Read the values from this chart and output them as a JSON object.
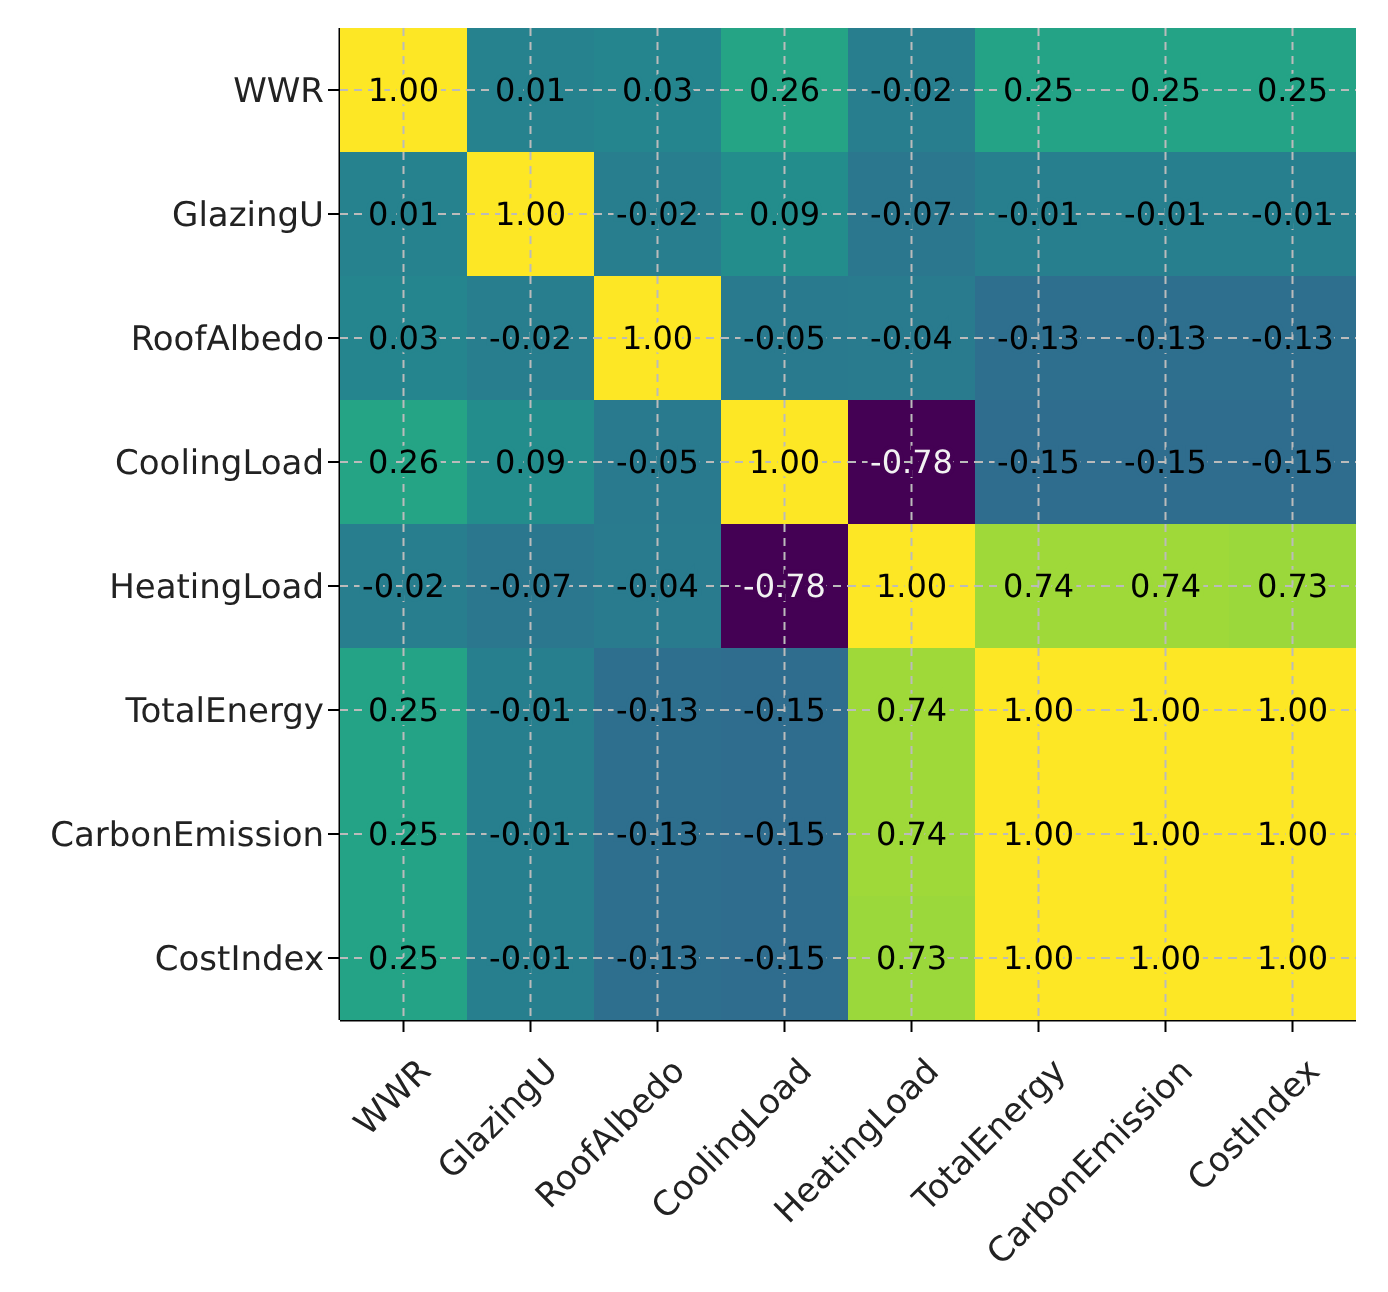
{
  "chart_data": {
    "type": "heatmap",
    "categories": [
      "WWR",
      "GlazingU",
      "RoofAlbedo",
      "CoolingLoad",
      "HeatingLoad",
      "TotalEnergy",
      "CarbonEmission",
      "CostIndex"
    ],
    "y_categories": [
      "WWR",
      "GlazingU",
      "RoofAlbedo",
      "CoolingLoad",
      "HeatingLoad",
      "TotalEnergy",
      "CarbonEmission",
      "CostIndex"
    ],
    "cells": [
      [
        1,
        0.01,
        0.03,
        0.26,
        -0.02,
        0.25,
        0.25,
        0.25
      ],
      [
        0.01,
        1,
        -0.02,
        0.09,
        -0.07,
        -0.01,
        -0.01,
        -0.01
      ],
      [
        0.03,
        -0.02,
        1,
        -0.05,
        -0.04,
        -0.13,
        -0.13,
        -0.13
      ],
      [
        0.26,
        0.09,
        -0.05,
        1,
        -0.78,
        -0.15,
        -0.15,
        -0.15
      ],
      [
        -0.02,
        -0.07,
        -0.04,
        -0.78,
        1,
        0.74,
        0.74,
        0.73
      ],
      [
        0.25,
        -0.01,
        -0.13,
        -0.15,
        0.74,
        1,
        1,
        1
      ],
      [
        0.25,
        -0.01,
        -0.13,
        -0.15,
        0.74,
        1,
        1,
        1
      ],
      [
        0.25,
        -0.01,
        -0.13,
        -0.15,
        0.73,
        1,
        1,
        1
      ]
    ],
    "cell_labels": [
      [
        "1.00",
        "0.01",
        "0.03",
        "0.26",
        "-0.02",
        "0.25",
        "0.25",
        "0.25"
      ],
      [
        "0.01",
        "1.00",
        "-0.02",
        "0.09",
        "-0.07",
        "-0.01",
        "-0.01",
        "-0.01"
      ],
      [
        "0.03",
        "-0.02",
        "1.00",
        "-0.05",
        "-0.04",
        "-0.13",
        "-0.13",
        "-0.13"
      ],
      [
        "0.26",
        "0.09",
        "-0.05",
        "1.00",
        "-0.78",
        "-0.15",
        "-0.15",
        "-0.15"
      ],
      [
        "-0.02",
        "-0.07",
        "-0.04",
        "-0.78",
        "1.00",
        "0.74",
        "0.74",
        "0.73"
      ],
      [
        "0.25",
        "-0.01",
        "-0.13",
        "-0.15",
        "0.74",
        "1.00",
        "1.00",
        "1.00"
      ],
      [
        "0.25",
        "-0.01",
        "-0.13",
        "-0.15",
        "0.74",
        "1.00",
        "1.00",
        "1.00"
      ],
      [
        "0.25",
        "-0.01",
        "-0.13",
        "-0.15",
        "0.73",
        "1.00",
        "1.00",
        "1.00"
      ]
    ],
    "grid": true
  }
}
